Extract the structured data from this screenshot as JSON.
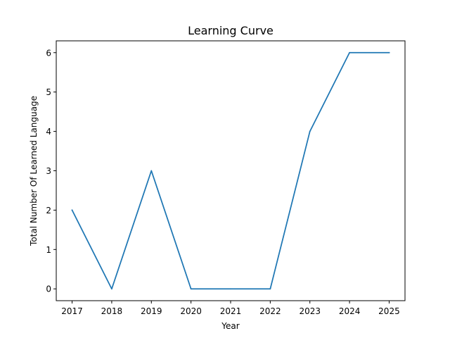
{
  "chart_data": {
    "type": "line",
    "title": "Learning Curve",
    "xlabel": "Year",
    "ylabel": "Total Number Of Learned Language",
    "x": [
      "2017",
      "2018",
      "2019",
      "2020",
      "2021",
      "2022",
      "2023",
      "2024",
      "2025"
    ],
    "series": [
      {
        "values": [
          2,
          0,
          3,
          0,
          0,
          0,
          4,
          6,
          6
        ],
        "color": "#1f77b4"
      }
    ],
    "yticks": [
      0,
      1,
      2,
      3,
      4,
      5,
      6
    ],
    "xlim": [
      2016.6,
      2025.4
    ],
    "ylim": [
      -0.3,
      6.3
    ],
    "grid": false,
    "legend": "none"
  }
}
